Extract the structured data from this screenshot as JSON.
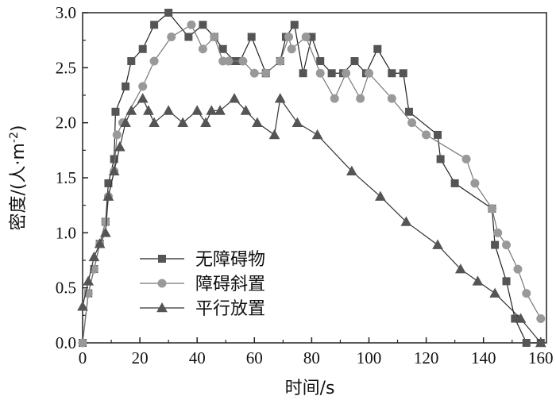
{
  "chart_data": {
    "type": "line",
    "title": "",
    "xlabel": "时间/s",
    "ylabel_prefix": "密度/(人·m",
    "ylabel_sup": "-2",
    "ylabel_suffix": ")",
    "xlim": [
      0,
      162
    ],
    "ylim": [
      0,
      3.0
    ],
    "xticks": [
      0,
      20,
      40,
      60,
      80,
      100,
      120,
      140,
      160
    ],
    "yticks": [
      0.0,
      0.5,
      1.0,
      1.5,
      2.0,
      2.5,
      3.0
    ],
    "ytick_labels": [
      "0.0",
      "0.5",
      "1.0",
      "1.5",
      "2.0",
      "2.5",
      "3.0"
    ],
    "grid": false,
    "legend_position": "bottom-left",
    "series": [
      {
        "name": "无障碍物",
        "marker": "square",
        "color": "#555555",
        "x": [
          0,
          2,
          4,
          6,
          8,
          9,
          11,
          11.5,
          15,
          17,
          21,
          25,
          30,
          37,
          42,
          46,
          49,
          53,
          55,
          59,
          64,
          69,
          71,
          74,
          77,
          80,
          83,
          87,
          91,
          95,
          99,
          103,
          108,
          112,
          114,
          124,
          125,
          130,
          143,
          144,
          148,
          151,
          155,
          160
        ],
        "y": [
          0,
          0.45,
          0.67,
          0.9,
          1.1,
          1.45,
          1.67,
          2.1,
          2.33,
          2.56,
          2.67,
          2.89,
          3.0,
          2.78,
          2.89,
          2.78,
          2.67,
          2.56,
          2.56,
          2.78,
          2.45,
          2.56,
          2.78,
          2.89,
          2.45,
          2.78,
          2.56,
          2.45,
          2.45,
          2.56,
          2.45,
          2.67,
          2.45,
          2.45,
          2.1,
          1.89,
          1.67,
          1.45,
          1.22,
          0.89,
          0.56,
          0.22,
          0.0,
          0.0
        ]
      },
      {
        "name": "障碍斜置",
        "marker": "circle",
        "color": "#999999",
        "x": [
          0,
          2,
          4,
          6,
          8,
          9,
          11,
          12,
          14,
          21,
          25,
          31,
          38,
          42,
          46,
          49,
          51,
          56,
          60,
          64,
          69,
          72,
          73,
          78,
          83,
          88,
          92,
          97,
          100,
          108,
          115,
          120,
          134,
          137,
          143,
          145,
          148,
          152,
          155,
          160
        ],
        "y": [
          0,
          0.45,
          0.67,
          0.9,
          1.1,
          1.33,
          1.56,
          1.89,
          2.0,
          2.33,
          2.56,
          2.78,
          2.89,
          2.67,
          2.78,
          2.56,
          2.56,
          2.56,
          2.45,
          2.45,
          2.56,
          2.78,
          2.67,
          2.78,
          2.45,
          2.22,
          2.45,
          2.22,
          2.45,
          2.22,
          2.0,
          1.89,
          1.67,
          1.45,
          1.22,
          1.0,
          0.89,
          0.67,
          0.45,
          0.22
        ]
      },
      {
        "name": "平行放置",
        "marker": "triangle",
        "color": "#555555",
        "x": [
          0,
          2,
          4,
          6,
          8,
          9,
          11,
          13,
          15,
          17,
          21,
          23,
          25,
          30,
          35,
          40,
          43,
          45,
          48,
          53,
          57,
          61,
          67,
          69,
          75,
          82,
          94,
          104,
          113,
          124,
          132,
          138,
          144,
          153,
          160
        ],
        "y": [
          0.33,
          0.56,
          0.78,
          0.9,
          1.0,
          1.33,
          1.56,
          1.78,
          2.0,
          2.11,
          2.22,
          2.11,
          2.0,
          2.11,
          2.0,
          2.11,
          2.0,
          2.11,
          2.11,
          2.22,
          2.11,
          2.0,
          1.89,
          2.22,
          2.0,
          1.89,
          1.56,
          1.33,
          1.1,
          0.89,
          0.67,
          0.56,
          0.45,
          0.22,
          0.0
        ]
      }
    ]
  }
}
